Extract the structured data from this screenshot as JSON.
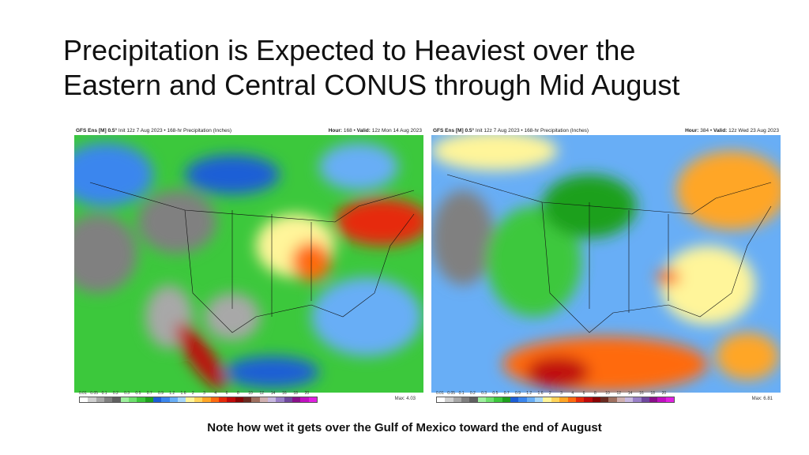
{
  "title_line1": "Precipitation is Expected to Heaviest over the",
  "title_line2": "Eastern and Central CONUS  through Mid August",
  "maps": [
    {
      "model": "GFS Ens [M] 0.5°",
      "init": "Init 12z 7 Aug 2023 • 168-hr Precipitation (Inches)",
      "hour_label": "Hour:",
      "hour": "168",
      "valid_label": "Valid:",
      "valid": "12z Mon 14 Aug 2023",
      "max": "Max: 4.03"
    },
    {
      "model": "GFS Ens [M] 0.5°",
      "init": "Init 12z 7 Aug 2023 • 168-hr Precipitation (Inches)",
      "hour_label": "Hour:",
      "hour": "384",
      "valid_label": "Valid:",
      "valid": "12z Wed 23 Aug 2023",
      "max": "Max: 6.81"
    }
  ],
  "colorbar": {
    "ticks": [
      "0.01",
      "0.05",
      "0.1",
      "0.2",
      "0.3",
      "0.5",
      "0.7",
      "0.9",
      "1.2",
      "1.6",
      "2",
      "3",
      "4",
      "6",
      "8",
      "10",
      "12",
      "14",
      "16",
      "18",
      "20"
    ],
    "colors": [
      "#ffffff",
      "#d0d0d0",
      "#a8a8a8",
      "#808080",
      "#606060",
      "#9ef09e",
      "#6ee06e",
      "#3cc83c",
      "#1ea01e",
      "#1c5ed6",
      "#3a86ee",
      "#68aef6",
      "#a6d6fa",
      "#fff59a",
      "#ffd45a",
      "#ffa626",
      "#ff6a10",
      "#e62a0a",
      "#c00a0a",
      "#8a0404",
      "#6a2a20",
      "#a07060",
      "#d0b0b0",
      "#c8b8e0",
      "#9a80c8",
      "#70489e",
      "#8a108a",
      "#c010c0",
      "#e020e0"
    ]
  },
  "note": "Note how wet it gets over the Gulf of Mexico toward the end of August"
}
